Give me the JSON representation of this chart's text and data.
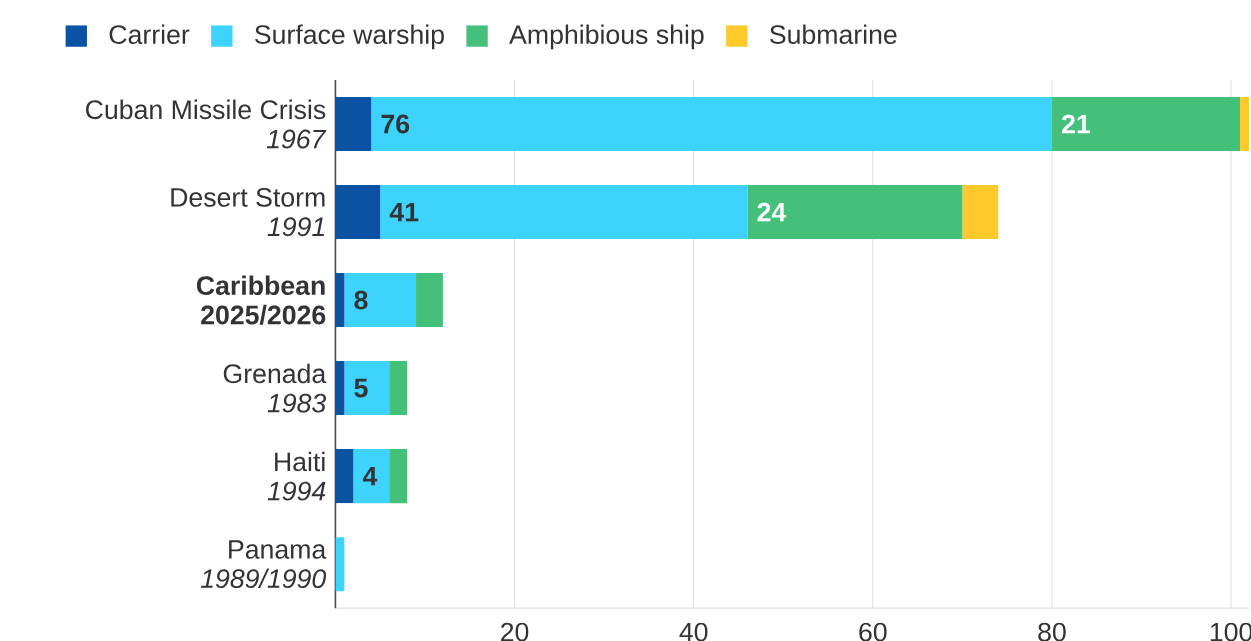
{
  "chart_data": {
    "type": "bar",
    "orientation": "horizontal",
    "stacked": true,
    "categories": [
      "Cuban Missile Crisis\n*1967*",
      "Desert Storm\n*1991*",
      "**Caribbean**\n**2025/2026**",
      "Grenada\n*1983*",
      "Haiti\n*1994*",
      "Panama\n*1989/1990*"
    ],
    "series": [
      {
        "name": "Carrier",
        "color": "#0b52a3",
        "values": [
          4,
          5,
          1,
          1,
          2,
          0
        ]
      },
      {
        "name": "Surface warship",
        "color": "#3dd3fd",
        "values": [
          76,
          41,
          8,
          5,
          4,
          1
        ],
        "value_labels": [
          "76",
          "41",
          "8",
          "5",
          "4",
          null
        ]
      },
      {
        "name": "Amphibious ship",
        "color": "#45c07a",
        "values": [
          21,
          24,
          3,
          2,
          2,
          0
        ],
        "value_labels": [
          "21",
          "24",
          null,
          null,
          null,
          null
        ]
      },
      {
        "name": "Submarine",
        "color": "#fec92a",
        "values": [
          1,
          4,
          0,
          0,
          0,
          0
        ]
      }
    ],
    "xlim": [
      0,
      102
    ],
    "xticks": [
      20,
      40,
      60,
      80,
      100
    ],
    "grid": "x",
    "legend": "top left"
  }
}
